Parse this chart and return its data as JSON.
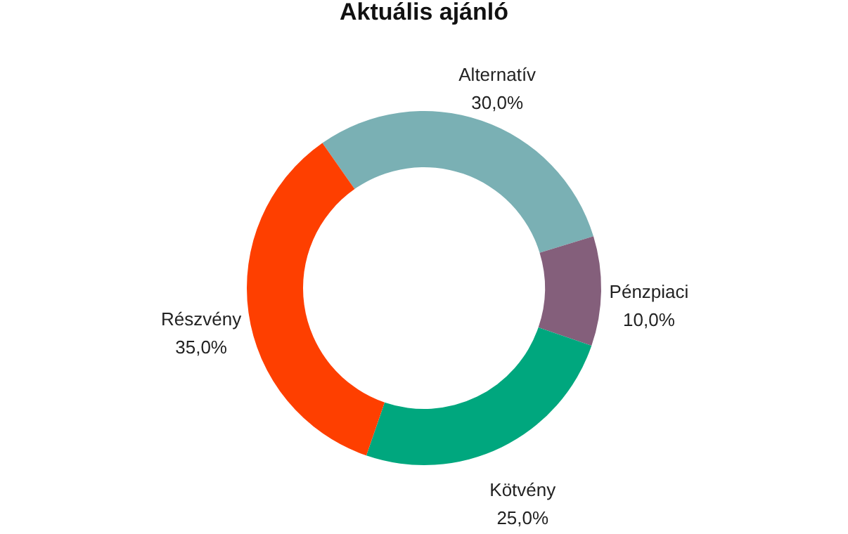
{
  "chart_data": {
    "type": "donut",
    "title": "Aktuális ajánló",
    "categories": [
      "Alternatív",
      "Pénzpiaci",
      "Kötvény",
      "Részvény"
    ],
    "values": [
      30.0,
      10.0,
      25.0,
      35.0
    ],
    "colors": [
      "#7ab0b4",
      "#845f7b",
      "#00a77e",
      "#fe3f00"
    ],
    "value_labels": [
      "30,0%",
      "10,0%",
      "25,0%",
      "35,0%"
    ],
    "legend": false
  }
}
